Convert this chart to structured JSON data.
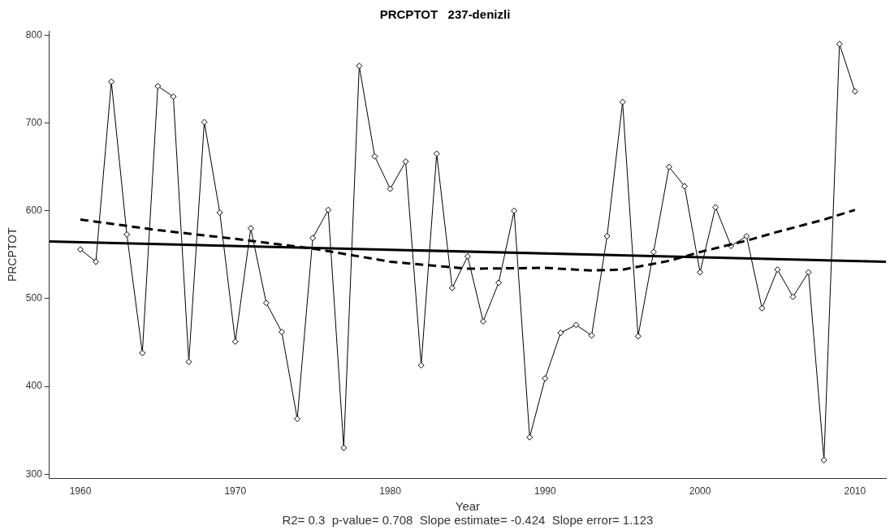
{
  "chart_data": {
    "type": "line",
    "title": "PRCPTOT   237-denizli",
    "xlabel": "Year",
    "ylabel": "PRCPTOT",
    "annotations": [
      "R2= 0.3  p-value= 0.708  Slope estimate= -0.424  Slope error= 1.123"
    ],
    "x": [
      1960,
      1961,
      1962,
      1963,
      1964,
      1965,
      1966,
      1967,
      1968,
      1969,
      1970,
      1971,
      1972,
      1973,
      1974,
      1975,
      1976,
      1977,
      1978,
      1979,
      1980,
      1981,
      1982,
      1983,
      1984,
      1985,
      1986,
      1987,
      1988,
      1989,
      1990,
      1991,
      1992,
      1993,
      1994,
      1995,
      1996,
      1997,
      1998,
      1999,
      2000,
      2001,
      2002,
      2003,
      2004,
      2005,
      2006,
      2007,
      2008,
      2009,
      2010
    ],
    "series": [
      {
        "type": "line",
        "color": "#000000",
        "marker": "diamond",
        "line_style": "solid",
        "values": [
          556,
          542,
          747,
          573,
          438,
          742,
          730,
          428,
          701,
          598,
          451,
          580,
          495,
          462,
          363,
          569,
          601,
          330,
          765,
          662,
          625,
          656,
          424,
          665,
          512,
          548,
          474,
          518,
          600,
          342,
          409,
          461,
          470,
          458,
          571,
          724,
          457,
          553,
          650,
          628,
          530,
          604,
          560,
          571,
          489,
          533,
          502,
          530,
          316,
          790,
          736
        ]
      },
      {
        "type": "line",
        "color": "#000000",
        "marker": "none",
        "line_style": "solid",
        "x": [
          1958,
          2012
        ],
        "values": [
          565,
          542
        ]
      },
      {
        "type": "line",
        "color": "#000000",
        "marker": "none",
        "line_style": "dashed",
        "x": [
          1960,
          1965,
          1970,
          1975,
          1980,
          1985,
          1990,
          1993,
          1995,
          1998,
          2000,
          2003,
          2005,
          2008,
          2010
        ],
        "values": [
          590,
          578,
          568,
          557,
          542,
          534,
          535,
          532,
          533,
          543,
          553,
          566,
          576,
          590,
          601
        ]
      }
    ],
    "xlim": [
      1958,
      2012
    ],
    "xticks": [
      1960,
      1970,
      1980,
      1990,
      2000,
      2010
    ],
    "ylim": [
      295,
      805
    ],
    "yticks": [
      300,
      400,
      500,
      600,
      700,
      800
    ],
    "grid": false,
    "legend": false
  }
}
